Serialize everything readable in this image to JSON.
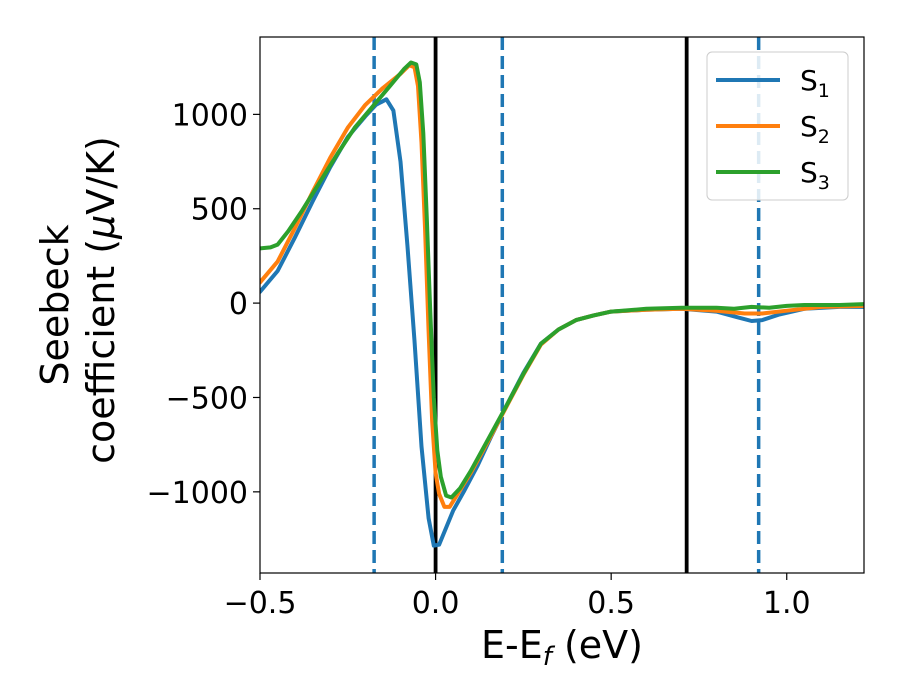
{
  "chart_data": {
    "type": "line",
    "title": "",
    "xlabel": {
      "main": "E-E",
      "sub": "f",
      "rest": " (eV)"
    },
    "ylabel": {
      "line1": "Seebeck",
      "line2": "coefficient  (",
      "mu": "μ",
      "line2_end": "V/K)"
    },
    "xlim": [
      -0.5,
      1.22
    ],
    "ylim": [
      -1430,
      1410
    ],
    "xticks": [
      {
        "value": -0.5,
        "label": "−0.5"
      },
      {
        "value": 0.0,
        "label": "0.0"
      },
      {
        "value": 0.5,
        "label": "0.5"
      },
      {
        "value": 1.0,
        "label": "1.0"
      }
    ],
    "yticks": [
      {
        "value": 1000,
        "label": "1000"
      },
      {
        "value": 500,
        "label": "500"
      },
      {
        "value": 0,
        "label": "0"
      },
      {
        "value": -500,
        "label": "−500"
      },
      {
        "value": -1000,
        "label": "−1000"
      }
    ],
    "grid": false,
    "legend_position": "top-right",
    "vertical_lines": [
      {
        "x": -0.175,
        "style": "dashed",
        "color": "#1f77b4"
      },
      {
        "x": 0.0,
        "style": "solid",
        "color": "#000000"
      },
      {
        "x": 0.19,
        "style": "dashed",
        "color": "#1f77b4"
      },
      {
        "x": 0.715,
        "style": "solid",
        "color": "#000000"
      },
      {
        "x": 0.92,
        "style": "dashed",
        "color": "#1f77b4"
      }
    ],
    "series": [
      {
        "name": "S",
        "sub": "1",
        "color": "#1f77b4",
        "points": [
          [
            -0.5,
            60
          ],
          [
            -0.45,
            170
          ],
          [
            -0.4,
            350
          ],
          [
            -0.35,
            540
          ],
          [
            -0.3,
            720
          ],
          [
            -0.25,
            880
          ],
          [
            -0.2,
            990
          ],
          [
            -0.17,
            1050
          ],
          [
            -0.14,
            1080
          ],
          [
            -0.12,
            1020
          ],
          [
            -0.1,
            750
          ],
          [
            -0.08,
            300
          ],
          [
            -0.06,
            -200
          ],
          [
            -0.04,
            -760
          ],
          [
            -0.02,
            -1140
          ],
          [
            -0.005,
            -1285
          ],
          [
            0.01,
            -1280
          ],
          [
            0.03,
            -1190
          ],
          [
            0.05,
            -1100
          ],
          [
            0.08,
            -1000
          ],
          [
            0.12,
            -860
          ],
          [
            0.16,
            -700
          ],
          [
            0.2,
            -550
          ],
          [
            0.25,
            -370
          ],
          [
            0.3,
            -215
          ],
          [
            0.35,
            -140
          ],
          [
            0.4,
            -90
          ],
          [
            0.45,
            -65
          ],
          [
            0.5,
            -45
          ],
          [
            0.6,
            -35
          ],
          [
            0.7,
            -30
          ],
          [
            0.8,
            -45
          ],
          [
            0.86,
            -75
          ],
          [
            0.9,
            -95
          ],
          [
            0.93,
            -90
          ],
          [
            0.98,
            -60
          ],
          [
            1.05,
            -30
          ],
          [
            1.15,
            -20
          ],
          [
            1.22,
            -20
          ]
        ]
      },
      {
        "name": "S",
        "sub": "2",
        "color": "#ff7f0e",
        "points": [
          [
            -0.5,
            110
          ],
          [
            -0.45,
            220
          ],
          [
            -0.4,
            400
          ],
          [
            -0.35,
            590
          ],
          [
            -0.3,
            770
          ],
          [
            -0.25,
            930
          ],
          [
            -0.2,
            1050
          ],
          [
            -0.15,
            1140
          ],
          [
            -0.1,
            1215
          ],
          [
            -0.075,
            1260
          ],
          [
            -0.06,
            1250
          ],
          [
            -0.05,
            1150
          ],
          [
            -0.04,
            850
          ],
          [
            -0.03,
            400
          ],
          [
            -0.02,
            -150
          ],
          [
            -0.01,
            -620
          ],
          [
            0.0,
            -900
          ],
          [
            0.01,
            -1010
          ],
          [
            0.025,
            -1080
          ],
          [
            0.04,
            -1080
          ],
          [
            0.06,
            -1020
          ],
          [
            0.1,
            -900
          ],
          [
            0.15,
            -730
          ],
          [
            0.2,
            -555
          ],
          [
            0.25,
            -380
          ],
          [
            0.3,
            -220
          ],
          [
            0.35,
            -140
          ],
          [
            0.4,
            -90
          ],
          [
            0.45,
            -65
          ],
          [
            0.5,
            -45
          ],
          [
            0.6,
            -35
          ],
          [
            0.7,
            -30
          ],
          [
            0.8,
            -40
          ],
          [
            0.88,
            -55
          ],
          [
            0.93,
            -55
          ],
          [
            1.0,
            -40
          ],
          [
            1.1,
            -20
          ],
          [
            1.22,
            -15
          ]
        ]
      },
      {
        "name": "S",
        "sub": "3",
        "color": "#2ca02c",
        "points": [
          [
            -0.5,
            290
          ],
          [
            -0.47,
            295
          ],
          [
            -0.45,
            310
          ],
          [
            -0.42,
            380
          ],
          [
            -0.38,
            490
          ],
          [
            -0.33,
            640
          ],
          [
            -0.28,
            790
          ],
          [
            -0.23,
            930
          ],
          [
            -0.18,
            1040
          ],
          [
            -0.13,
            1150
          ],
          [
            -0.09,
            1240
          ],
          [
            -0.07,
            1275
          ],
          [
            -0.055,
            1265
          ],
          [
            -0.045,
            1170
          ],
          [
            -0.035,
            900
          ],
          [
            -0.025,
            450
          ],
          [
            -0.015,
            -50
          ],
          [
            -0.005,
            -500
          ],
          [
            0.005,
            -780
          ],
          [
            0.015,
            -920
          ],
          [
            0.03,
            -1020
          ],
          [
            0.045,
            -1030
          ],
          [
            0.07,
            -980
          ],
          [
            0.1,
            -890
          ],
          [
            0.15,
            -720
          ],
          [
            0.2,
            -550
          ],
          [
            0.25,
            -375
          ],
          [
            0.3,
            -215
          ],
          [
            0.35,
            -140
          ],
          [
            0.4,
            -90
          ],
          [
            0.45,
            -65
          ],
          [
            0.5,
            -45
          ],
          [
            0.6,
            -30
          ],
          [
            0.7,
            -25
          ],
          [
            0.8,
            -25
          ],
          [
            0.85,
            -30
          ],
          [
            0.9,
            -20
          ],
          [
            0.95,
            -25
          ],
          [
            1.0,
            -15
          ],
          [
            1.05,
            -10
          ],
          [
            1.15,
            -10
          ],
          [
            1.22,
            -5
          ]
        ]
      }
    ]
  }
}
